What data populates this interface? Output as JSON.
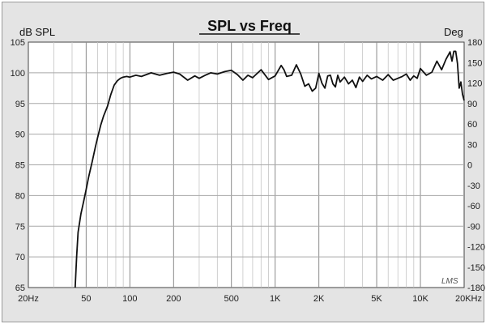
{
  "chart_data": {
    "type": "line",
    "title": "SPL vs Freq",
    "ylabel": "dB SPL",
    "y2label": "Deg",
    "watermark": "LMS",
    "xscale": "log",
    "xlim": [
      20,
      20000
    ],
    "ylim": [
      65,
      105
    ],
    "y2lim": [
      -180,
      180
    ],
    "grid": true,
    "x_ticks": [
      {
        "value": 20,
        "label": "20Hz"
      },
      {
        "value": 50,
        "label": "50"
      },
      {
        "value": 100,
        "label": "100"
      },
      {
        "value": 200,
        "label": "200"
      },
      {
        "value": 500,
        "label": "500"
      },
      {
        "value": 1000,
        "label": "1K"
      },
      {
        "value": 2000,
        "label": "2K"
      },
      {
        "value": 5000,
        "label": "5K"
      },
      {
        "value": 10000,
        "label": "10K"
      },
      {
        "value": 20000,
        "label": "20KHz"
      }
    ],
    "y_ticks": [
      {
        "value": 105,
        "label": "105"
      },
      {
        "value": 100,
        "label": "100"
      },
      {
        "value": 95,
        "label": "95"
      },
      {
        "value": 90,
        "label": "90"
      },
      {
        "value": 85,
        "label": "85"
      },
      {
        "value": 80,
        "label": "80"
      },
      {
        "value": 75,
        "label": "75"
      },
      {
        "value": 70,
        "label": "70"
      },
      {
        "value": 65,
        "label": "65"
      }
    ],
    "y2_ticks": [
      {
        "value": 180,
        "label": "180"
      },
      {
        "value": 150,
        "label": "150"
      },
      {
        "value": 120,
        "label": "120"
      },
      {
        "value": 90,
        "label": "90"
      },
      {
        "value": 60,
        "label": "60"
      },
      {
        "value": 30,
        "label": "30"
      },
      {
        "value": 0,
        "label": "0"
      },
      {
        "value": -30,
        "label": "-30"
      },
      {
        "value": -60,
        "label": "-60"
      },
      {
        "value": -90,
        "label": "-90"
      },
      {
        "value": -120,
        "label": "-120"
      },
      {
        "value": -150,
        "label": "-150"
      },
      {
        "value": -180,
        "label": "-180"
      }
    ],
    "series": [
      {
        "color": "#111111",
        "x": [
          42,
          43,
          44,
          46,
          48,
          50,
          52,
          55,
          58,
          60,
          63,
          66,
          70,
          74,
          78,
          82,
          86,
          90,
          95,
          100,
          110,
          120,
          140,
          160,
          180,
          200,
          220,
          250,
          280,
          300,
          330,
          360,
          400,
          450,
          500,
          550,
          600,
          650,
          700,
          800,
          900,
          1000,
          1100,
          1150,
          1200,
          1300,
          1400,
          1500,
          1600,
          1700,
          1800,
          1900,
          2000,
          2100,
          2200,
          2300,
          2400,
          2500,
          2600,
          2700,
          2800,
          3000,
          3200,
          3400,
          3600,
          3800,
          4000,
          4300,
          4600,
          5000,
          5500,
          6000,
          6500,
          7000,
          7500,
          8000,
          8500,
          9000,
          9500,
          10000,
          11000,
          12000,
          13000,
          14000,
          15000,
          16000,
          16500,
          17000,
          17500,
          18000,
          18500,
          19000,
          19500,
          20000
        ],
        "y": [
          65,
          70,
          74,
          77,
          79,
          81,
          83,
          85.5,
          88,
          89.5,
          91.5,
          93,
          94.5,
          96.5,
          98,
          98.7,
          99.1,
          99.3,
          99.4,
          99.3,
          99.6,
          99.4,
          100.0,
          99.6,
          99.9,
          100.1,
          99.8,
          98.8,
          99.5,
          99.1,
          99.6,
          100.0,
          99.8,
          100.2,
          100.4,
          99.7,
          98.8,
          99.6,
          99.2,
          100.5,
          98.9,
          99.5,
          101.2,
          100.5,
          99.4,
          99.6,
          101.3,
          99.8,
          97.8,
          98.2,
          97.0,
          97.5,
          99.9,
          98.3,
          97.5,
          99.5,
          99.6,
          98.2,
          97.7,
          99.6,
          98.5,
          99.3,
          98.2,
          98.8,
          97.6,
          99.3,
          98.6,
          99.6,
          99.0,
          99.4,
          98.8,
          99.7,
          98.8,
          99.1,
          99.4,
          99.8,
          98.8,
          99.5,
          99.1,
          100.7,
          99.6,
          100.1,
          101.9,
          100.5,
          102.2,
          103.4,
          101.9,
          103.5,
          103.5,
          101.5,
          97.5,
          98.5,
          96.5,
          95.5
        ]
      }
    ]
  }
}
